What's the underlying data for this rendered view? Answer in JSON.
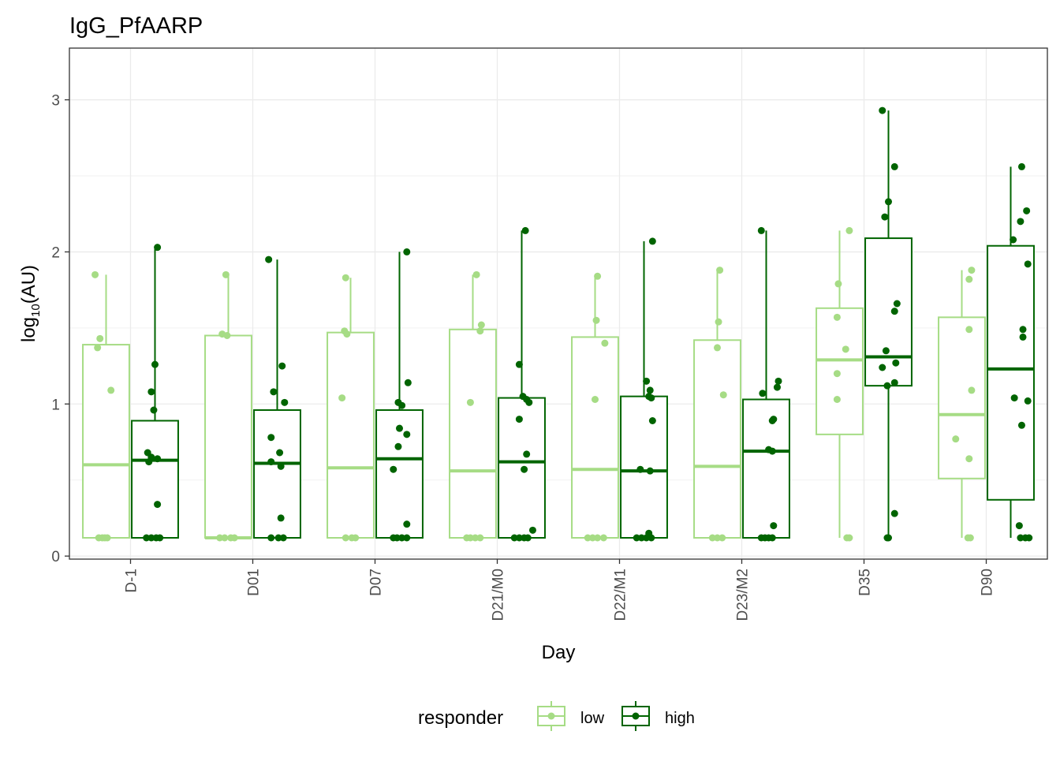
{
  "chart_data": {
    "type": "box",
    "title": "IgG_PfAARP",
    "xlabel": "Day",
    "ylabel_base": "log",
    "ylabel_sub": "10",
    "ylabel_rest": "(AU)",
    "ylim": [
      -0.02,
      3.34
    ],
    "yticks": [
      0,
      1,
      2,
      3
    ],
    "ytick_labels": [
      "0",
      "1",
      "2",
      "3"
    ],
    "grid": true,
    "categories": [
      "D-1",
      "D01",
      "D07",
      "D21/M0",
      "D22/M1",
      "D23/M2",
      "D35",
      "D90"
    ],
    "legend": {
      "title": "responder",
      "position": "bottom"
    },
    "series": [
      {
        "name": "low",
        "color": "#a6dc85",
        "boxes": [
          {
            "q1": 0.12,
            "median": 0.6,
            "q3": 1.39,
            "lower": 0.12,
            "upper": 1.85
          },
          {
            "q1": 0.12,
            "median": 0.12,
            "q3": 1.45,
            "lower": 0.12,
            "upper": 1.85
          },
          {
            "q1": 0.12,
            "median": 0.58,
            "q3": 1.47,
            "lower": 0.12,
            "upper": 1.83
          },
          {
            "q1": 0.12,
            "median": 0.56,
            "q3": 1.49,
            "lower": 0.12,
            "upper": 1.85
          },
          {
            "q1": 0.12,
            "median": 0.57,
            "q3": 1.44,
            "lower": 0.12,
            "upper": 1.84
          },
          {
            "q1": 0.12,
            "median": 0.59,
            "q3": 1.42,
            "lower": 0.12,
            "upper": 1.88
          },
          {
            "q1": 0.8,
            "median": 1.29,
            "q3": 1.63,
            "lower": 0.12,
            "upper": 2.14
          },
          {
            "q1": 0.51,
            "median": 0.93,
            "q3": 1.57,
            "lower": 0.12,
            "upper": 1.88
          }
        ],
        "points": [
          [
            [
              -0.09,
              1.85
            ],
            [
              -0.05,
              1.43
            ],
            [
              -0.07,
              1.37
            ],
            [
              0.04,
              1.09
            ],
            [
              -0.06,
              0.12
            ],
            [
              -0.03,
              0.12
            ],
            [
              0.01,
              0.12
            ],
            [
              -0.01,
              0.12
            ]
          ],
          [
            [
              -0.02,
              1.85
            ],
            [
              -0.05,
              1.46
            ],
            [
              -0.01,
              1.45
            ],
            [
              -0.07,
              0.12
            ],
            [
              -0.03,
              0.12
            ],
            [
              0.02,
              0.12
            ],
            [
              0.05,
              0.12
            ]
          ],
          [
            [
              -0.04,
              1.83
            ],
            [
              -0.05,
              1.48
            ],
            [
              -0.03,
              1.46
            ],
            [
              -0.07,
              1.04
            ],
            [
              -0.04,
              0.12
            ],
            [
              0.01,
              0.12
            ],
            [
              0.04,
              0.12
            ]
          ],
          [
            [
              0.03,
              1.85
            ],
            [
              0.07,
              1.52
            ],
            [
              0.06,
              1.48
            ],
            [
              -0.02,
              1.01
            ],
            [
              -0.05,
              0.12
            ],
            [
              -0.02,
              0.12
            ],
            [
              0.02,
              0.12
            ],
            [
              0.06,
              0.12
            ]
          ],
          [
            [
              0.02,
              1.84
            ],
            [
              0.01,
              1.55
            ],
            [
              0.08,
              1.4
            ],
            [
              0.0,
              1.03
            ],
            [
              -0.06,
              0.12
            ],
            [
              -0.02,
              0.12
            ],
            [
              0.02,
              0.12
            ],
            [
              0.07,
              0.12
            ]
          ],
          [
            [
              0.02,
              1.88
            ],
            [
              0.01,
              1.54
            ],
            [
              0.0,
              1.37
            ],
            [
              0.05,
              1.06
            ],
            [
              -0.04,
              0.12
            ],
            [
              0.0,
              0.12
            ],
            [
              0.04,
              0.12
            ]
          ],
          [
            [
              0.08,
              2.14
            ],
            [
              -0.01,
              1.79
            ],
            [
              -0.02,
              1.57
            ],
            [
              0.05,
              1.36
            ],
            [
              -0.02,
              1.2
            ],
            [
              -0.02,
              1.03
            ],
            [
              0.06,
              0.12
            ],
            [
              0.08,
              0.12
            ]
          ],
          [
            [
              0.08,
              1.88
            ],
            [
              0.06,
              1.82
            ],
            [
              0.06,
              1.49
            ],
            [
              0.08,
              1.09
            ],
            [
              -0.05,
              0.77
            ],
            [
              0.06,
              0.64
            ],
            [
              0.05,
              0.12
            ],
            [
              0.07,
              0.12
            ]
          ]
        ]
      },
      {
        "name": "high",
        "color": "#006400",
        "boxes": [
          {
            "q1": 0.12,
            "median": 0.63,
            "q3": 0.89,
            "lower": 0.12,
            "upper": 2.03
          },
          {
            "q1": 0.12,
            "median": 0.61,
            "q3": 0.96,
            "lower": 0.12,
            "upper": 1.95
          },
          {
            "q1": 0.12,
            "median": 0.64,
            "q3": 0.96,
            "lower": 0.12,
            "upper": 2.0
          },
          {
            "q1": 0.12,
            "median": 0.62,
            "q3": 1.04,
            "lower": 0.12,
            "upper": 2.14
          },
          {
            "q1": 0.12,
            "median": 0.56,
            "q3": 1.05,
            "lower": 0.12,
            "upper": 2.07
          },
          {
            "q1": 0.12,
            "median": 0.69,
            "q3": 1.03,
            "lower": 0.12,
            "upper": 2.14
          },
          {
            "q1": 1.12,
            "median": 1.31,
            "q3": 2.09,
            "lower": 0.12,
            "upper": 2.93
          },
          {
            "q1": 0.37,
            "median": 1.23,
            "q3": 2.04,
            "lower": 0.12,
            "upper": 2.56
          }
        ],
        "points": [
          [
            [
              0.02,
              2.03
            ],
            [
              0.0,
              1.26
            ],
            [
              -0.03,
              1.08
            ],
            [
              -0.01,
              0.96
            ],
            [
              -0.06,
              0.68
            ],
            [
              -0.03,
              0.65
            ],
            [
              0.02,
              0.64
            ],
            [
              -0.05,
              0.62
            ],
            [
              0.02,
              0.34
            ],
            [
              -0.07,
              0.12
            ],
            [
              -0.03,
              0.12
            ],
            [
              0.01,
              0.12
            ],
            [
              0.04,
              0.12
            ]
          ],
          [
            [
              -0.07,
              1.95
            ],
            [
              0.04,
              1.25
            ],
            [
              -0.03,
              1.08
            ],
            [
              0.06,
              1.01
            ],
            [
              -0.05,
              0.78
            ],
            [
              0.02,
              0.68
            ],
            [
              -0.05,
              0.62
            ],
            [
              0.03,
              0.59
            ],
            [
              0.03,
              0.25
            ],
            [
              -0.05,
              0.12
            ],
            [
              0.01,
              0.12
            ],
            [
              0.05,
              0.12
            ]
          ],
          [
            [
              0.06,
              2.0
            ],
            [
              0.07,
              1.14
            ],
            [
              -0.01,
              1.01
            ],
            [
              0.02,
              0.99
            ],
            [
              0.0,
              0.84
            ],
            [
              0.06,
              0.8
            ],
            [
              -0.01,
              0.72
            ],
            [
              -0.05,
              0.57
            ],
            [
              0.06,
              0.21
            ],
            [
              -0.05,
              0.12
            ],
            [
              -0.02,
              0.12
            ],
            [
              0.02,
              0.12
            ],
            [
              0.06,
              0.12
            ]
          ],
          [
            [
              0.03,
              2.14
            ],
            [
              -0.02,
              1.26
            ],
            [
              0.01,
              1.05
            ],
            [
              0.04,
              1.03
            ],
            [
              0.06,
              1.01
            ],
            [
              -0.02,
              0.9
            ],
            [
              0.04,
              0.67
            ],
            [
              0.02,
              0.57
            ],
            [
              0.09,
              0.17
            ],
            [
              -0.06,
              0.12
            ],
            [
              -0.02,
              0.12
            ],
            [
              0.02,
              0.12
            ],
            [
              0.05,
              0.12
            ]
          ],
          [
            [
              0.07,
              2.07
            ],
            [
              0.02,
              1.15
            ],
            [
              0.05,
              1.09
            ],
            [
              0.04,
              1.05
            ],
            [
              0.06,
              1.04
            ],
            [
              0.07,
              0.89
            ],
            [
              -0.03,
              0.57
            ],
            [
              0.05,
              0.56
            ],
            [
              0.04,
              0.15
            ],
            [
              -0.06,
              0.12
            ],
            [
              -0.02,
              0.12
            ],
            [
              0.02,
              0.12
            ],
            [
              0.06,
              0.12
            ]
          ],
          [
            [
              -0.04,
              2.14
            ],
            [
              0.1,
              1.15
            ],
            [
              0.09,
              1.11
            ],
            [
              -0.03,
              1.07
            ],
            [
              0.05,
              0.89
            ],
            [
              0.06,
              0.9
            ],
            [
              0.02,
              0.7
            ],
            [
              0.05,
              0.69
            ],
            [
              0.06,
              0.2
            ],
            [
              -0.04,
              0.12
            ],
            [
              -0.01,
              0.12
            ],
            [
              0.02,
              0.12
            ],
            [
              0.05,
              0.12
            ]
          ],
          [
            [
              -0.05,
              2.93
            ],
            [
              0.05,
              2.56
            ],
            [
              0.0,
              2.33
            ],
            [
              -0.03,
              2.23
            ],
            [
              0.07,
              1.66
            ],
            [
              0.05,
              1.61
            ],
            [
              -0.02,
              1.35
            ],
            [
              0.06,
              1.27
            ],
            [
              -0.05,
              1.24
            ],
            [
              0.05,
              1.14
            ],
            [
              -0.01,
              1.12
            ],
            [
              0.05,
              0.28
            ],
            [
              -0.01,
              0.12
            ],
            [
              0.0,
              0.12
            ]
          ],
          [
            [
              0.09,
              2.56
            ],
            [
              0.13,
              2.27
            ],
            [
              0.08,
              2.2
            ],
            [
              0.02,
              2.08
            ],
            [
              0.14,
              1.92
            ],
            [
              0.1,
              1.49
            ],
            [
              0.1,
              1.44
            ],
            [
              0.03,
              1.04
            ],
            [
              0.14,
              1.02
            ],
            [
              0.09,
              0.86
            ],
            [
              0.07,
              0.2
            ],
            [
              0.08,
              0.12
            ],
            [
              0.12,
              0.12
            ],
            [
              0.15,
              0.12
            ]
          ]
        ]
      }
    ]
  }
}
